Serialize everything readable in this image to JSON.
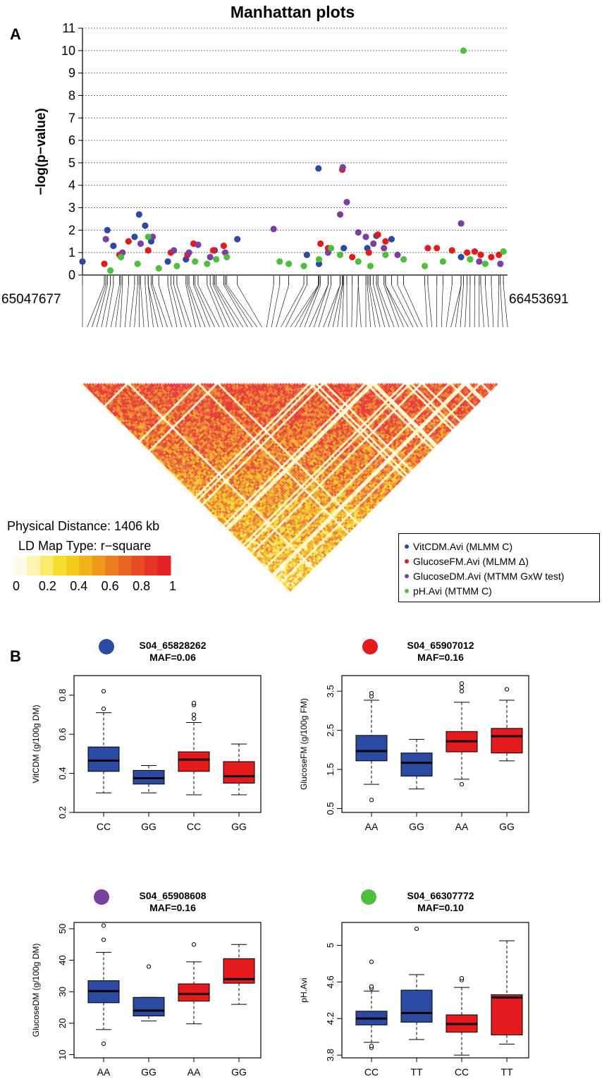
{
  "figure_title": "Manhattan plots",
  "panel_a_label": "A",
  "panel_b_label": "B",
  "colors": {
    "VitCDM": "#2b4ba3",
    "GlucoseFM": "#e41a1c",
    "GlucoseDM": "#7b3f9e",
    "pH": "#4fbe3f",
    "box_blue": "#2b4ba3",
    "box_red": "#e41a1c",
    "grid": "#777777"
  },
  "region": {
    "start_label": "65047677",
    "end_label": "66453691"
  },
  "ld": {
    "distance_label": "Physical Distance: 1406 kb",
    "map_type_label": "LD Map Type: r−square",
    "scale_ticks": [
      "0",
      "0.2",
      "0.4",
      "0.6",
      "0.8",
      "1"
    ],
    "scale_colors": [
      "#fffbe8",
      "#fff3b0",
      "#fbe96a",
      "#f6dd2b",
      "#f3cb1a",
      "#f1b21a",
      "#ee981c",
      "#eb7f1f",
      "#e96522",
      "#e74b24",
      "#e53526",
      "#e42326"
    ]
  },
  "legend": [
    {
      "label": "VitCDM.Avi (MLMM C)",
      "color": "#2b4ba3"
    },
    {
      "label": "GlucoseFM.Avi (MLMM Δ)",
      "color": "#e41a1c"
    },
    {
      "label": "GlucoseDM.Avi (MTMM GxW test)",
      "color": "#7b3f9e"
    },
    {
      "label": "pH.Avi (MTMM C)",
      "color": "#4fbe3f"
    }
  ],
  "chart_data": [
    {
      "type": "scatter",
      "title": "Manhattan plots",
      "ylabel": "−log(p−value)",
      "xlabel": "",
      "xlim": [
        65047677,
        66453691
      ],
      "ylim": [
        0,
        11
      ],
      "y_ticks": [
        "0",
        "1",
        "2",
        "3",
        "4",
        "5",
        "6",
        "7",
        "8",
        "9",
        "10",
        "11"
      ],
      "grid": true,
      "series": [
        {
          "name": "VitCDM.Avi (MLMM C)",
          "color": "#2b4ba3",
          "x": [
            65047677,
            65130000,
            65150000,
            65220000,
            65235000,
            65255000,
            65275000,
            65330000,
            65390000,
            65485000,
            65560000,
            65790000,
            65828262,
            65830000,
            65912000,
            65990000,
            66020000,
            66070000,
            66300000
          ],
          "y": [
            0.6,
            2.0,
            1.3,
            1.7,
            2.7,
            2.2,
            1.5,
            0.6,
            0.7,
            1.1,
            1.6,
            0.9,
            4.75,
            0.5,
            1.2,
            1.2,
            1.75,
            1.6,
            0.8
          ]
        },
        {
          "name": "GlucoseFM.Avi (MLMM Δ)",
          "color": "#e41a1c",
          "x": [
            65120000,
            65170000,
            65200000,
            65265000,
            65340000,
            65395000,
            65415000,
            65480000,
            65515000,
            65835000,
            65860000,
            65907012,
            65940000,
            65995000,
            66025000,
            66050000,
            66190000,
            66220000,
            66270000,
            66320000,
            66345000,
            66365000,
            66400000,
            66425000
          ],
          "y": [
            0.5,
            0.9,
            1.5,
            1.1,
            1.0,
            0.9,
            1.4,
            1.1,
            1.3,
            1.4,
            1.2,
            4.7,
            0.8,
            1.0,
            1.8,
            1.5,
            1.2,
            1.2,
            1.1,
            1.0,
            1.05,
            0.9,
            0.8,
            0.9
          ],
          "points": 24
        },
        {
          "name": "GlucoseDM.Avi (MTMM GxW test)",
          "color": "#7b3f9e",
          "x": [
            65125000,
            65180000,
            65240000,
            65280000,
            65350000,
            65400000,
            65430000,
            65470000,
            65520000,
            65680000,
            65860000,
            65900000,
            65908608,
            65922000,
            65960000,
            65985000,
            66010000,
            66045000,
            66090000,
            66300000,
            66360000,
            66430000
          ],
          "y": [
            1.6,
            1.0,
            1.4,
            1.7,
            1.1,
            1.0,
            1.35,
            0.8,
            1.0,
            2.05,
            1.0,
            2.7,
            4.8,
            3.25,
            1.9,
            1.7,
            1.4,
            1.2,
            0.9,
            2.3,
            0.6,
            0.5
          ]
        },
        {
          "name": "pH.Avi (MTMM C)",
          "color": "#4fbe3f",
          "x": [
            65140000,
            65175000,
            65230000,
            65265000,
            65300000,
            65360000,
            65420000,
            65460000,
            65490000,
            65525000,
            65700000,
            65730000,
            65780000,
            65830000,
            65870000,
            65900000,
            65960000,
            66000000,
            66050000,
            66110000,
            66180000,
            66240000,
            66307772,
            66330000,
            66380000,
            66440000
          ],
          "y": [
            0.2,
            0.8,
            0.5,
            1.7,
            0.3,
            0.4,
            0.6,
            0.5,
            0.7,
            0.8,
            0.6,
            0.5,
            0.4,
            0.7,
            1.2,
            0.9,
            0.6,
            0.4,
            0.9,
            0.7,
            0.4,
            0.6,
            10.0,
            0.7,
            0.5,
            1.05
          ]
        }
      ]
    },
    {
      "type": "box",
      "title": "S04_65828262",
      "subtitle": "MAF=0.06",
      "marker_color": "#2b4ba3",
      "ylabel": "VitCDM (g/100g DM)",
      "ylim": [
        0.2,
        0.9
      ],
      "y_ticks": [
        0.2,
        0.4,
        0.6,
        0.8
      ],
      "categories": [
        "CC",
        "GG",
        "CC",
        "GG"
      ],
      "box_colors": [
        "#2b4ba3",
        "#2b4ba3",
        "#e41a1c",
        "#e41a1c"
      ],
      "boxes": [
        {
          "whislo": 0.3,
          "q1": 0.41,
          "med": 0.465,
          "q3": 0.535,
          "whishi": 0.71,
          "fliers": [
            0.73,
            0.82
          ]
        },
        {
          "whislo": 0.3,
          "q1": 0.345,
          "med": 0.375,
          "q3": 0.415,
          "whishi": 0.44,
          "fliers": []
        },
        {
          "whislo": 0.29,
          "q1": 0.41,
          "med": 0.47,
          "q3": 0.51,
          "whishi": 0.66,
          "fliers": [
            0.68,
            0.7,
            0.75,
            0.76
          ]
        },
        {
          "whislo": 0.29,
          "q1": 0.35,
          "med": 0.385,
          "q3": 0.46,
          "whishi": 0.55,
          "fliers": []
        }
      ]
    },
    {
      "type": "box",
      "title": "S04_65907012",
      "subtitle": "MAF=0.16",
      "marker_color": "#e41a1c",
      "ylabel": "GlucoseFM (g/100g FM)",
      "ylim": [
        0.4,
        3.9
      ],
      "y_ticks": [
        0.5,
        1.5,
        2.5,
        3.5
      ],
      "categories": [
        "AA",
        "GG",
        "AA",
        "GG"
      ],
      "box_colors": [
        "#2b4ba3",
        "#2b4ba3",
        "#e41a1c",
        "#e41a1c"
      ],
      "boxes": [
        {
          "whislo": 1.12,
          "q1": 1.72,
          "med": 1.97,
          "q3": 2.37,
          "whishi": 3.27,
          "fliers": [
            0.72,
            3.37,
            3.45
          ]
        },
        {
          "whislo": 1.0,
          "q1": 1.33,
          "med": 1.67,
          "q3": 1.92,
          "whishi": 2.27,
          "fliers": []
        },
        {
          "whislo": 1.25,
          "q1": 1.95,
          "med": 2.22,
          "q3": 2.47,
          "whishi": 3.22,
          "fliers": [
            1.12,
            3.5,
            3.6,
            3.7
          ]
        },
        {
          "whislo": 1.72,
          "q1": 1.92,
          "med": 2.35,
          "q3": 2.55,
          "whishi": 3.27,
          "fliers": [
            3.55
          ]
        }
      ]
    },
    {
      "type": "box",
      "title": "S04_65908608",
      "subtitle": "MAF=0.16",
      "marker_color": "#7b3f9e",
      "ylabel": "GlucoseDM (g/100g DM)",
      "ylim": [
        9,
        52
      ],
      "y_ticks": [
        10,
        20,
        30,
        40,
        50
      ],
      "categories": [
        "AA",
        "GG",
        "AA",
        "GG"
      ],
      "box_colors": [
        "#2b4ba3",
        "#2b4ba3",
        "#e41a1c",
        "#e41a1c"
      ],
      "boxes": [
        {
          "whislo": 18.0,
          "q1": 26.5,
          "med": 30.2,
          "q3": 33.5,
          "whishi": 42.5,
          "fliers": [
            13.5,
            46.5,
            51.0
          ]
        },
        {
          "whislo": 20.7,
          "q1": 22.3,
          "med": 24.0,
          "q3": 28.2,
          "whishi": 28.2,
          "fliers": [
            38.0
          ]
        },
        {
          "whislo": 19.8,
          "q1": 27.0,
          "med": 29.3,
          "q3": 32.5,
          "whishi": 39.5,
          "fliers": [
            45.0
          ]
        },
        {
          "whislo": 26.0,
          "q1": 32.7,
          "med": 34.0,
          "q3": 40.5,
          "whishi": 45.0,
          "fliers": []
        }
      ]
    },
    {
      "type": "box",
      "title": "S04_66307772",
      "subtitle": "MAF=0.10",
      "marker_color": "#4fbe3f",
      "ylabel": "pH.Avi",
      "ylim": [
        3.77,
        5.25
      ],
      "y_ticks": [
        3.8,
        4.2,
        4.6,
        5.0
      ],
      "categories": [
        "CC",
        "TT",
        "CC",
        "TT"
      ],
      "box_colors": [
        "#2b4ba3",
        "#2b4ba3",
        "#e41a1c",
        "#e41a1c"
      ],
      "boxes": [
        {
          "whislo": 3.94,
          "q1": 4.13,
          "med": 4.2,
          "q3": 4.28,
          "whishi": 4.5,
          "fliers": [
            3.88,
            3.9,
            4.53,
            4.55,
            4.82
          ]
        },
        {
          "whislo": 3.97,
          "q1": 4.16,
          "med": 4.26,
          "q3": 4.51,
          "whishi": 4.68,
          "fliers": [
            5.18
          ]
        },
        {
          "whislo": 3.8,
          "q1": 4.05,
          "med": 4.14,
          "q3": 4.24,
          "whishi": 4.54,
          "fliers": [
            4.62,
            4.64
          ]
        },
        {
          "whislo": 3.92,
          "q1": 4.02,
          "med": 4.43,
          "q3": 4.46,
          "whishi": 5.05,
          "fliers": []
        }
      ]
    }
  ]
}
